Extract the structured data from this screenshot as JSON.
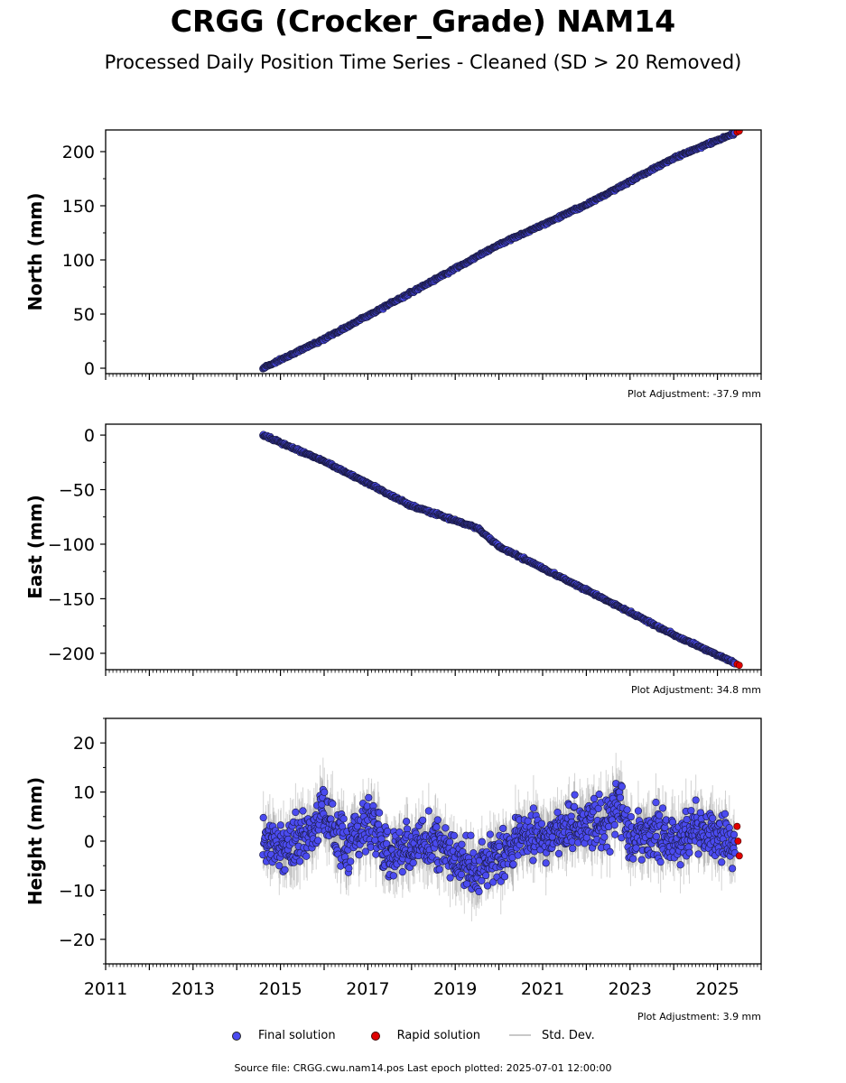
{
  "title": "CRGG (Crocker_Grade) NAM14",
  "subtitle": "Processed Daily Position Time Series - Cleaned (SD > 20 Removed)",
  "source_text": "Source file: CRGG.cwu.nam14.pos  Last epoch plotted: 2025-07-01 12:00:00",
  "legend": {
    "final": "Final solution",
    "rapid": "Rapid solution",
    "sd": "Std. Dev."
  },
  "colors": {
    "final": "#4b4bf0",
    "rapid": "#e00000",
    "sd": "#808080"
  },
  "chart_data": [
    {
      "type": "scatter",
      "ylabel": "North (mm)",
      "adjustment_text": "Plot Adjustment: -37.9 mm",
      "xlim": [
        2011,
        2026
      ],
      "ylim": [
        -5,
        220
      ],
      "yticks": [
        0,
        50,
        100,
        150,
        200
      ],
      "x_tick_labels_shown": false,
      "series": [
        {
          "name": "Final solution",
          "x": [
            2014.6,
            2016.0,
            2018.0,
            2020.0,
            2022.0,
            2024.0,
            2025.4
          ],
          "y": [
            0,
            27,
            70,
            114,
            151,
            194,
            217
          ]
        },
        {
          "name": "Rapid solution",
          "x": [
            2025.45,
            2025.5
          ],
          "y": [
            218,
            219
          ]
        }
      ]
    },
    {
      "type": "scatter",
      "ylabel": "East (mm)",
      "adjustment_text": "Plot Adjustment: 34.8 mm",
      "xlim": [
        2011,
        2026
      ],
      "ylim": [
        -215,
        10
      ],
      "yticks": [
        0,
        -50,
        -100,
        -150,
        -200
      ],
      "x_tick_labels_shown": false,
      "series": [
        {
          "name": "Final solution",
          "x": [
            2014.6,
            2016.0,
            2018.0,
            2019.5,
            2020.0,
            2022.0,
            2024.0,
            2025.4
          ],
          "y": [
            0,
            -24,
            -65,
            -85,
            -102,
            -142,
            -183,
            -209
          ]
        },
        {
          "name": "Rapid solution",
          "x": [
            2025.45,
            2025.5
          ],
          "y": [
            -210,
            -211
          ]
        }
      ]
    },
    {
      "type": "scatter",
      "ylabel": "Height (mm)",
      "adjustment_text": "Plot Adjustment: 3.9 mm",
      "xlim": [
        2011,
        2026
      ],
      "ylim": [
        -25,
        25
      ],
      "yticks": [
        20,
        10,
        0,
        -10,
        -20
      ],
      "xticks": [
        2011,
        2013,
        2015,
        2017,
        2019,
        2021,
        2023,
        2025
      ],
      "x_tick_labels_shown": true,
      "series": [
        {
          "name": "Final solution",
          "x": [
            2014.6,
            2015.0,
            2015.5,
            2016.0,
            2016.5,
            2017.0,
            2017.5,
            2018.0,
            2018.5,
            2019.0,
            2019.5,
            2020.0,
            2020.5,
            2021.0,
            2021.5,
            2022.0,
            2022.5,
            2022.8,
            2023.0,
            2023.5,
            2024.0,
            2024.5,
            2025.0,
            2025.4
          ],
          "y": [
            1,
            -2,
            0,
            6,
            -1,
            4,
            -3,
            -1,
            0,
            -4,
            -6,
            -3,
            1,
            0,
            3,
            2,
            4,
            8,
            0,
            2,
            -1,
            3,
            1,
            0
          ]
        },
        {
          "name": "Rapid solution",
          "x": [
            2025.45,
            2025.47,
            2025.5
          ],
          "y": [
            3,
            0,
            -3
          ]
        }
      ]
    }
  ]
}
